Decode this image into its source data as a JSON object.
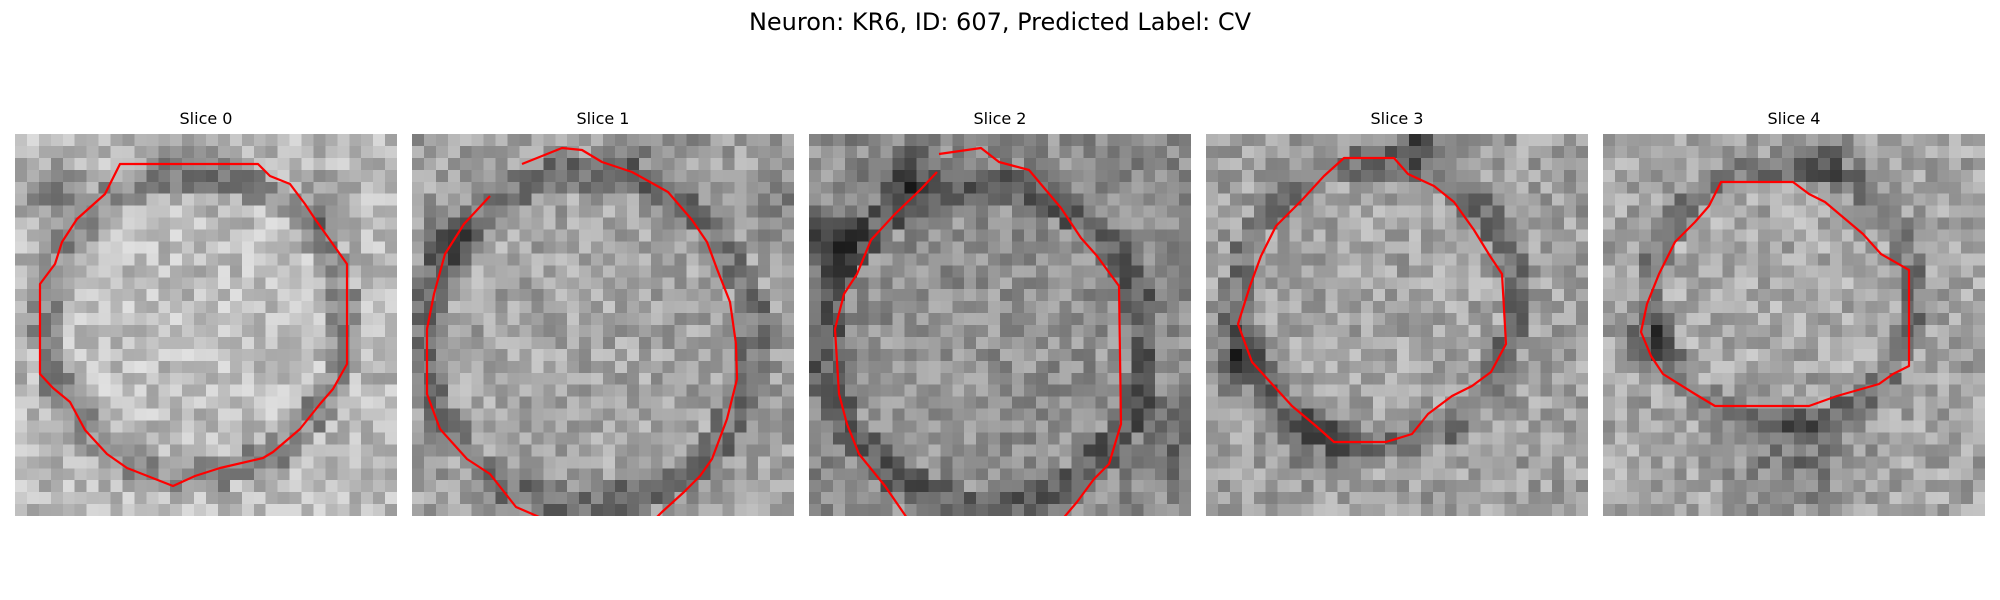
{
  "figure": {
    "title": "Neuron: KR6, ID: 607, Predicted Label: CV"
  },
  "colors": {
    "contour": "#ff0000",
    "background": "#ffffff"
  },
  "panels": [
    {
      "title": "Slice 0"
    },
    {
      "title": "Slice 1"
    },
    {
      "title": "Slice 2"
    },
    {
      "title": "Slice 3"
    },
    {
      "title": "Slice 4"
    }
  ]
}
